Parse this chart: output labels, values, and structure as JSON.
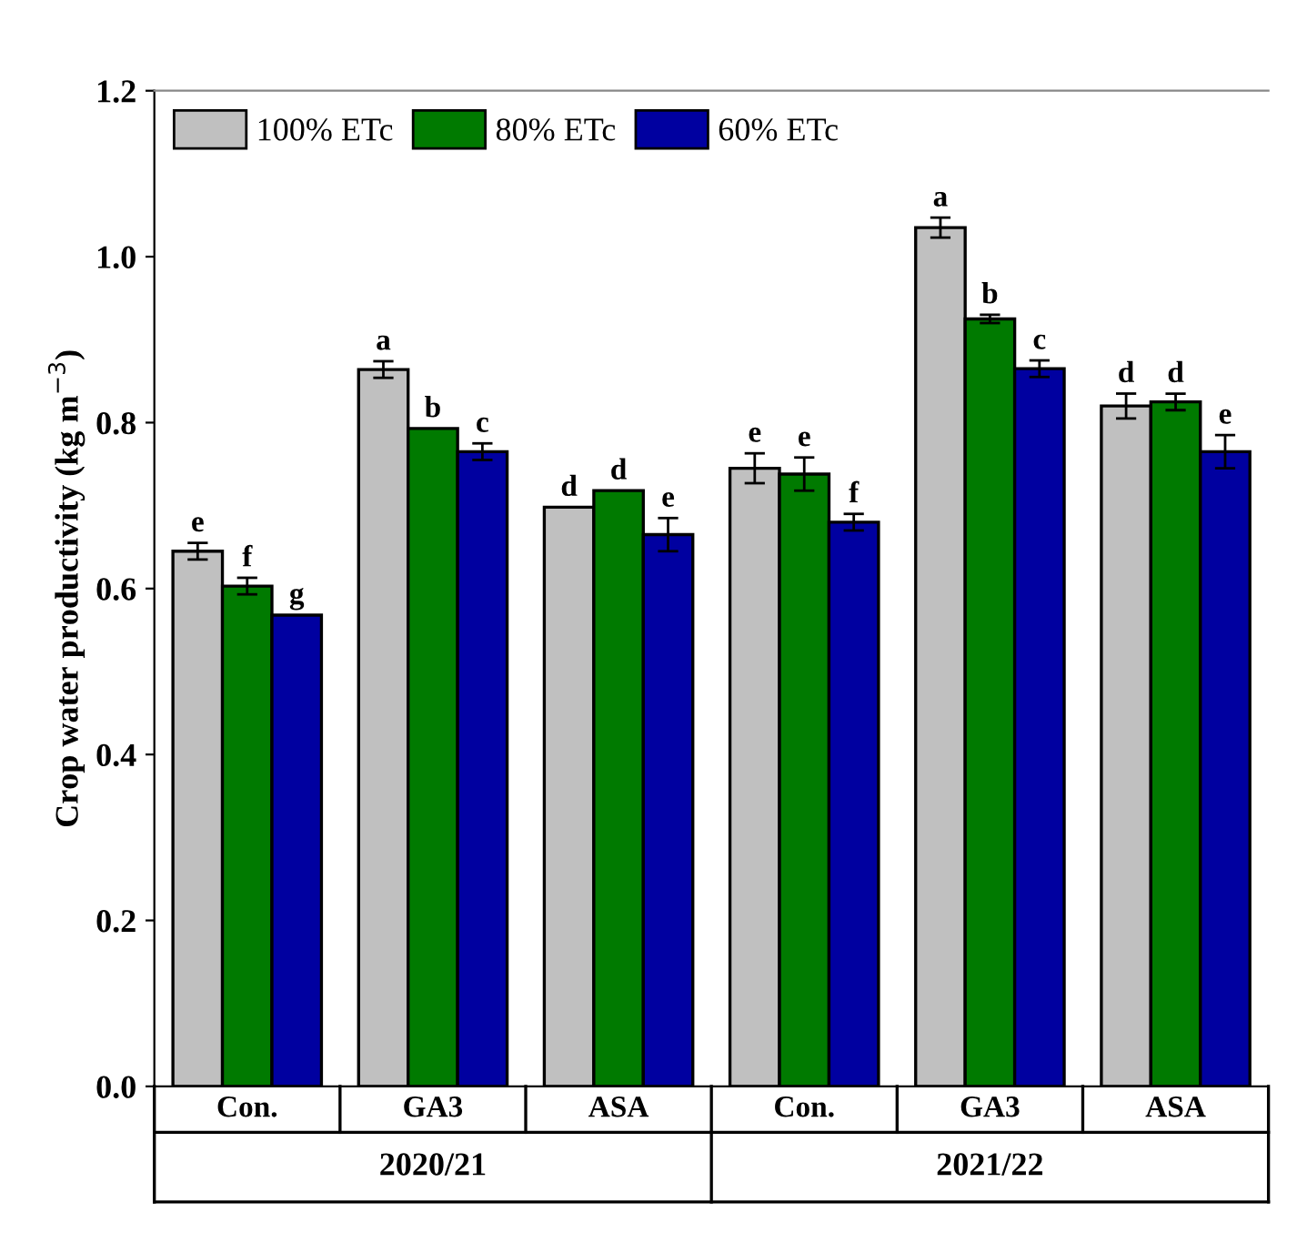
{
  "chart_data": {
    "type": "bar",
    "ylabel": "Crop water productivity (kg m$^{−3}$)",
    "categories": [
      "Con.",
      "GA3",
      "ASA",
      "Con.",
      "GA3",
      "ASA"
    ],
    "annotations": [
      "2020/21",
      "2021/22"
    ],
    "series": [
      {
        "name": "100% ETc",
        "color": "#c0c0c0",
        "values": [
          0.645,
          0.864,
          0.698,
          0.745,
          1.035,
          0.82
        ],
        "errors": [
          0.01,
          0.01,
          null,
          0.018,
          0.012,
          0.015
        ],
        "value_labels": [
          "e",
          "a",
          "d",
          "e",
          "a",
          "d"
        ]
      },
      {
        "name": "80% ETc",
        "color": "#007a00",
        "values": [
          0.603,
          0.793,
          0.718,
          0.738,
          0.925,
          0.825
        ],
        "errors": [
          0.01,
          null,
          null,
          0.02,
          0.005,
          0.01
        ],
        "value_labels": [
          "f",
          "b",
          "d",
          "e",
          "b",
          "d"
        ]
      },
      {
        "name": "60% ETc",
        "color": "#0000a0",
        "values": [
          0.568,
          0.765,
          0.665,
          0.68,
          0.865,
          0.765
        ],
        "errors": [
          null,
          0.01,
          0.02,
          0.01,
          0.01,
          0.02
        ],
        "value_labels": [
          "g",
          "c",
          "e",
          "f",
          "c",
          "e"
        ]
      }
    ],
    "ylim": [
      0,
      1.2
    ],
    "yticks": [
      {
        "value": 0,
        "label": "0.0"
      },
      {
        "value": 0.2,
        "label": "0.2"
      },
      {
        "value": 0.4,
        "label": "0.4"
      },
      {
        "value": 0.6,
        "label": "0.6"
      },
      {
        "value": 0.8,
        "label": "0.8"
      },
      {
        "value": 1.0,
        "label": "1.0"
      },
      {
        "value": 1.2,
        "label": "1.2"
      }
    ],
    "legend": "top left",
    "grid": false
  }
}
